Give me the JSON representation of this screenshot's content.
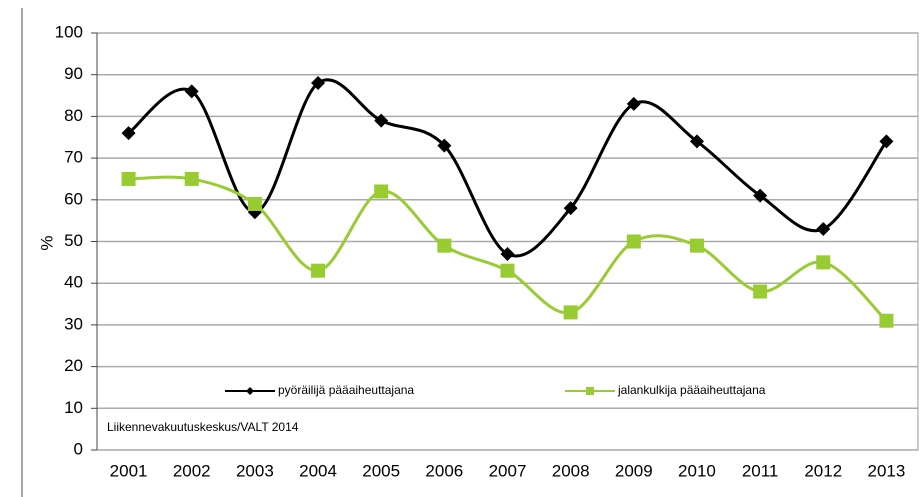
{
  "chart_data": {
    "type": "line",
    "y_label": "%",
    "annotation": "Liikennevakuutuskeskus/VALT 2014",
    "categories": [
      "2001",
      "2002",
      "2003",
      "2004",
      "2005",
      "2006",
      "2007",
      "2008",
      "2009",
      "2010",
      "2011",
      "2012",
      "2013"
    ],
    "series": [
      {
        "name": "pyöräilijä pääaiheuttajana",
        "color": "#000000",
        "marker": "diamond",
        "values": [
          76,
          86,
          57,
          88,
          79,
          73,
          47,
          58,
          83,
          74,
          61,
          53,
          74
        ]
      },
      {
        "name": "jalankulkija pääaiheuttajana",
        "color": "#99cc33",
        "marker": "square",
        "values": [
          65,
          65,
          59,
          43,
          62,
          49,
          43,
          33,
          50,
          49,
          38,
          45,
          31
        ]
      }
    ],
    "ylim": [
      0,
      100
    ],
    "yticks": [
      0,
      10,
      20,
      30,
      40,
      50,
      60,
      70,
      80,
      90,
      100
    ],
    "grid": true,
    "smooth": true
  }
}
